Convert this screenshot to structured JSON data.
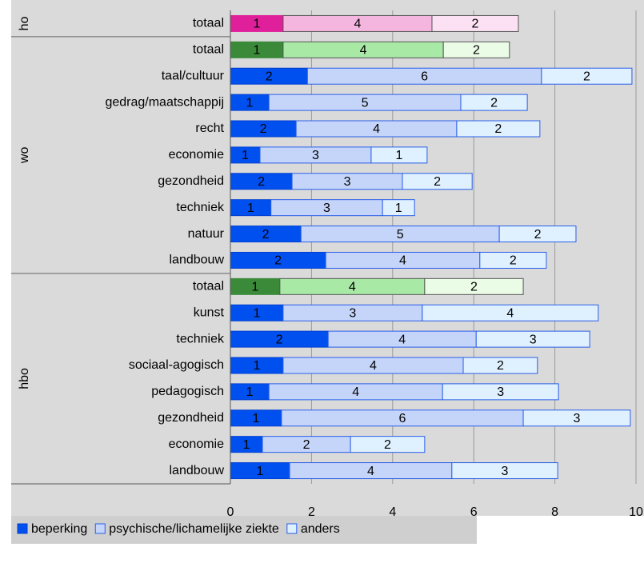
{
  "chart_data": {
    "type": "stacked-bar-horizontal",
    "groups": [
      {
        "name": "ho",
        "categories": [
          "totaal"
        ],
        "total_colors": [
          "#e0209a",
          "#f4b6df",
          "#fbe1f3"
        ]
      },
      {
        "name": "wo",
        "categories": [
          "totaal",
          "taal/cultuur",
          "gedrag/maatschappij",
          "recht",
          "economie",
          "gezondheid",
          "techniek",
          "natuur",
          "landbouw"
        ],
        "total_colors": [
          "#3a8a3a",
          "#a9e9a6",
          "#eafbe6"
        ]
      },
      {
        "name": "hbo",
        "categories": [
          "totaal",
          "kunst",
          "techniek",
          "sociaal-agogisch",
          "pedagogisch",
          "gezondheid",
          "economie",
          "landbouw"
        ],
        "total_colors": [
          "#3a8a3a",
          "#a9e9a6",
          "#eafbe6"
        ]
      }
    ],
    "series": [
      {
        "name": "beperking",
        "color": "#0050f0",
        "values": [
          1.3,
          1.3,
          1.9,
          0.95,
          1.62,
          0.73,
          1.52,
          1.0,
          1.74,
          2.35,
          1.22,
          1.3,
          2.41,
          1.3,
          0.95,
          1.26,
          0.79,
          1.46
        ],
        "value_labels": [
          "1",
          "1",
          "2",
          "1",
          "2",
          "1",
          "2",
          "1",
          "2",
          "2",
          "1",
          "1",
          "2",
          "1",
          "1",
          "1",
          "1",
          "1"
        ]
      },
      {
        "name": "psychische/lichamelijke ziekte",
        "color": "#c5d5fa",
        "values": [
          3.67,
          3.95,
          5.77,
          4.73,
          3.96,
          2.74,
          2.72,
          2.75,
          4.89,
          3.8,
          3.57,
          3.43,
          3.65,
          4.44,
          4.28,
          5.96,
          2.17,
          4.0
        ],
        "value_labels": [
          "4",
          "4",
          "6",
          "5",
          "4",
          "3",
          "3",
          "3",
          "5",
          "4",
          "4",
          "3",
          "4",
          "4",
          "4",
          "6",
          "2",
          "4"
        ]
      },
      {
        "name": "anders",
        "color": "#dff0ff",
        "values": [
          2.13,
          1.63,
          2.23,
          1.64,
          2.05,
          1.38,
          1.72,
          0.79,
          1.89,
          1.64,
          2.43,
          4.34,
          2.8,
          1.83,
          2.86,
          2.64,
          1.83,
          2.61
        ],
        "value_labels": [
          "2",
          "2",
          "2",
          "2",
          "2",
          "1",
          "2",
          "1",
          "2",
          "2",
          "2",
          "4",
          "3",
          "2",
          "3",
          "3",
          "2",
          "3"
        ]
      }
    ],
    "xlim": [
      0,
      10
    ],
    "xticks": [
      0,
      2,
      4,
      6,
      8,
      10
    ],
    "grid": true
  }
}
